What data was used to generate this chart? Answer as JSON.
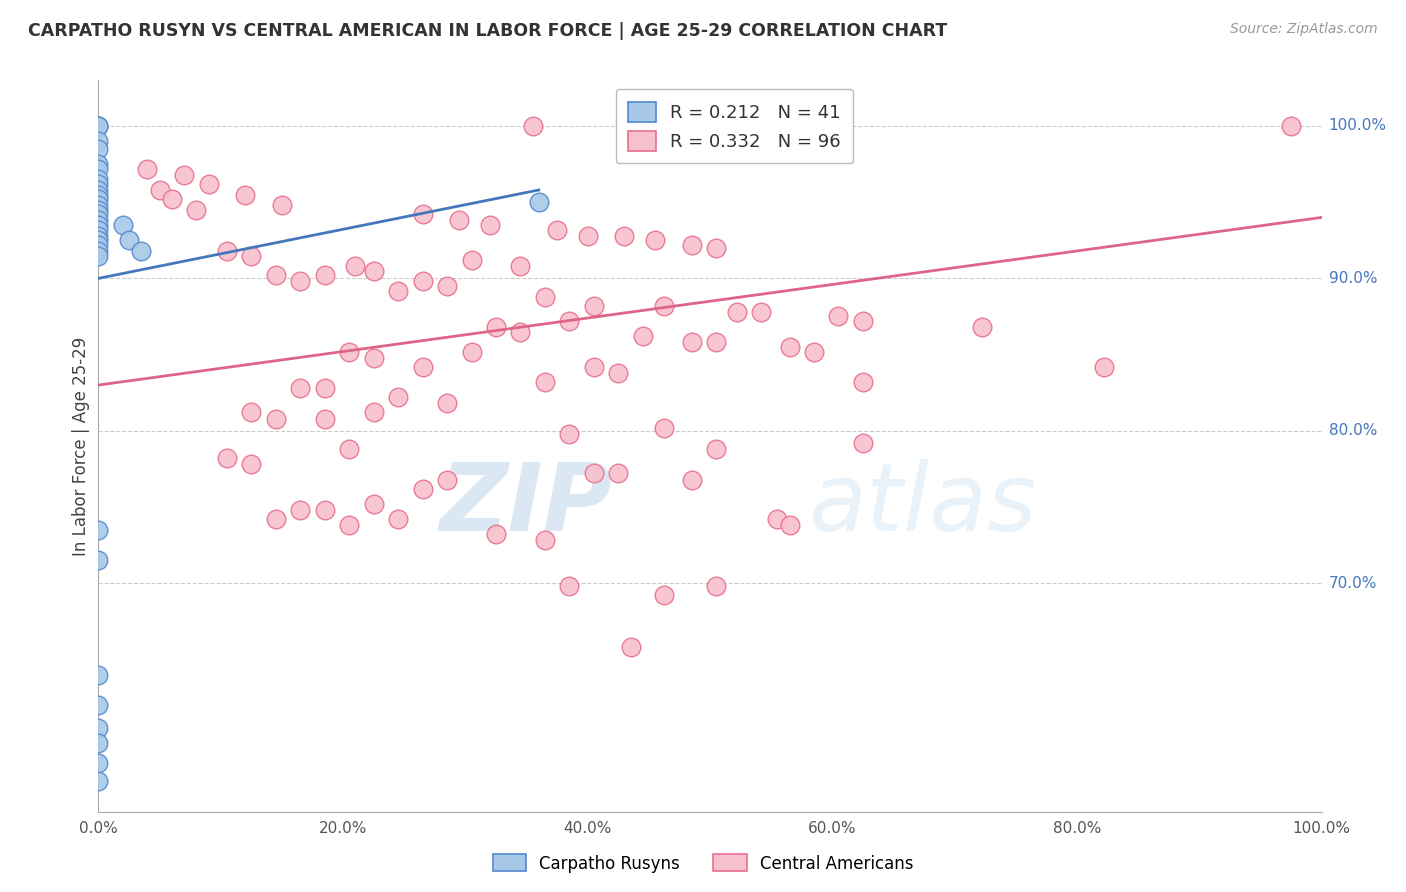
{
  "title": "CARPATHO RUSYN VS CENTRAL AMERICAN IN LABOR FORCE | AGE 25-29 CORRELATION CHART",
  "source": "Source: ZipAtlas.com",
  "ylabel": "In Labor Force | Age 25-29",
  "x_lim": [
    0.0,
    1.0
  ],
  "y_lim": [
    0.55,
    1.03
  ],
  "blue_R": 0.212,
  "blue_N": 41,
  "pink_R": 0.332,
  "pink_N": 96,
  "legend_label_blue": "Carpatho Rusyns",
  "legend_label_pink": "Central Americans",
  "watermark_zip": "ZIP",
  "watermark_atlas": "atlas",
  "blue_color": "#a8c8e8",
  "pink_color": "#f8c0cc",
  "blue_edge_color": "#5588cc",
  "pink_edge_color": "#e87090",
  "blue_line_color": "#4477bb",
  "pink_line_color": "#dd6688",
  "blue_scatter": [
    [
      0.0,
      1.0
    ],
    [
      0.0,
      1.0
    ],
    [
      0.0,
      1.0
    ],
    [
      0.0,
      0.99
    ],
    [
      0.0,
      0.985
    ],
    [
      0.0,
      0.975
    ],
    [
      0.0,
      0.972
    ],
    [
      0.0,
      0.965
    ],
    [
      0.0,
      0.962
    ],
    [
      0.0,
      0.958
    ],
    [
      0.0,
      0.955
    ],
    [
      0.0,
      0.952
    ],
    [
      0.0,
      0.948
    ],
    [
      0.0,
      0.945
    ],
    [
      0.0,
      0.942
    ],
    [
      0.0,
      0.938
    ],
    [
      0.0,
      0.935
    ],
    [
      0.0,
      0.932
    ],
    [
      0.0,
      0.928
    ],
    [
      0.0,
      0.925
    ],
    [
      0.0,
      0.922
    ],
    [
      0.0,
      0.918
    ],
    [
      0.0,
      0.915
    ],
    [
      0.02,
      0.935
    ],
    [
      0.025,
      0.925
    ],
    [
      0.035,
      0.918
    ],
    [
      0.36,
      0.95
    ],
    [
      0.0,
      0.735
    ],
    [
      0.0,
      0.715
    ],
    [
      0.0,
      0.64
    ],
    [
      0.0,
      0.62
    ],
    [
      0.0,
      0.605
    ],
    [
      0.0,
      0.595
    ],
    [
      0.0,
      0.582
    ],
    [
      0.0,
      0.57
    ]
  ],
  "pink_scatter": [
    [
      0.355,
      1.0
    ],
    [
      0.975,
      1.0
    ],
    [
      0.04,
      0.972
    ],
    [
      0.07,
      0.968
    ],
    [
      0.09,
      0.962
    ],
    [
      0.05,
      0.958
    ],
    [
      0.12,
      0.955
    ],
    [
      0.06,
      0.952
    ],
    [
      0.15,
      0.948
    ],
    [
      0.08,
      0.945
    ],
    [
      0.265,
      0.942
    ],
    [
      0.295,
      0.938
    ],
    [
      0.32,
      0.935
    ],
    [
      0.375,
      0.932
    ],
    [
      0.4,
      0.928
    ],
    [
      0.43,
      0.928
    ],
    [
      0.455,
      0.925
    ],
    [
      0.485,
      0.922
    ],
    [
      0.505,
      0.92
    ],
    [
      0.105,
      0.918
    ],
    [
      0.125,
      0.915
    ],
    [
      0.305,
      0.912
    ],
    [
      0.345,
      0.908
    ],
    [
      0.21,
      0.908
    ],
    [
      0.225,
      0.905
    ],
    [
      0.185,
      0.902
    ],
    [
      0.145,
      0.902
    ],
    [
      0.165,
      0.898
    ],
    [
      0.265,
      0.898
    ],
    [
      0.285,
      0.895
    ],
    [
      0.245,
      0.892
    ],
    [
      0.365,
      0.888
    ],
    [
      0.405,
      0.882
    ],
    [
      0.462,
      0.882
    ],
    [
      0.522,
      0.878
    ],
    [
      0.542,
      0.878
    ],
    [
      0.605,
      0.875
    ],
    [
      0.625,
      0.872
    ],
    [
      0.385,
      0.872
    ],
    [
      0.325,
      0.868
    ],
    [
      0.345,
      0.865
    ],
    [
      0.445,
      0.862
    ],
    [
      0.485,
      0.858
    ],
    [
      0.505,
      0.858
    ],
    [
      0.565,
      0.855
    ],
    [
      0.585,
      0.852
    ],
    [
      0.305,
      0.852
    ],
    [
      0.205,
      0.852
    ],
    [
      0.225,
      0.848
    ],
    [
      0.265,
      0.842
    ],
    [
      0.405,
      0.842
    ],
    [
      0.425,
      0.838
    ],
    [
      0.365,
      0.832
    ],
    [
      0.625,
      0.832
    ],
    [
      0.185,
      0.828
    ],
    [
      0.165,
      0.828
    ],
    [
      0.245,
      0.822
    ],
    [
      0.285,
      0.818
    ],
    [
      0.225,
      0.812
    ],
    [
      0.125,
      0.812
    ],
    [
      0.145,
      0.808
    ],
    [
      0.185,
      0.808
    ],
    [
      0.462,
      0.802
    ],
    [
      0.722,
      0.868
    ],
    [
      0.822,
      0.842
    ],
    [
      0.385,
      0.798
    ],
    [
      0.205,
      0.788
    ],
    [
      0.505,
      0.788
    ],
    [
      0.105,
      0.782
    ],
    [
      0.125,
      0.778
    ],
    [
      0.405,
      0.772
    ],
    [
      0.425,
      0.772
    ],
    [
      0.485,
      0.768
    ],
    [
      0.285,
      0.768
    ],
    [
      0.265,
      0.762
    ],
    [
      0.225,
      0.752
    ],
    [
      0.165,
      0.748
    ],
    [
      0.185,
      0.748
    ],
    [
      0.245,
      0.742
    ],
    [
      0.555,
      0.742
    ],
    [
      0.565,
      0.738
    ],
    [
      0.325,
      0.732
    ],
    [
      0.365,
      0.728
    ],
    [
      0.145,
      0.742
    ],
    [
      0.205,
      0.738
    ],
    [
      0.385,
      0.698
    ],
    [
      0.505,
      0.698
    ],
    [
      0.462,
      0.692
    ],
    [
      0.435,
      0.658
    ],
    [
      0.625,
      0.792
    ]
  ],
  "blue_trendline_x": [
    0.0,
    0.36
  ],
  "blue_trendline_y": [
    0.9,
    0.958
  ],
  "pink_trendline_x": [
    0.0,
    1.0
  ],
  "pink_trendline_y": [
    0.83,
    0.94
  ]
}
